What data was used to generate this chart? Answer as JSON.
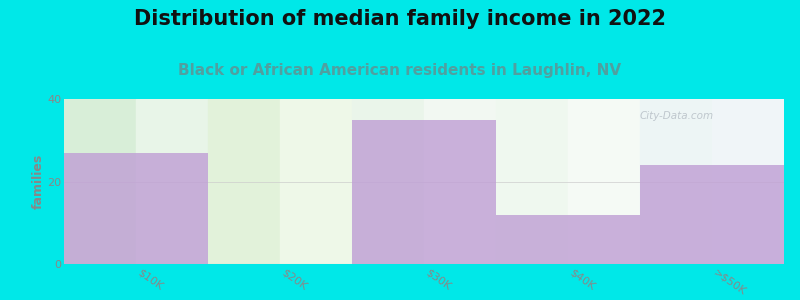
{
  "title": "Distribution of median family income in 2022",
  "subtitle": "Black or African American residents in Laughlin, NV",
  "categories": [
    "$10K",
    "$20K",
    "$30K",
    "$40K",
    ">$50K"
  ],
  "values": [
    27,
    0,
    35,
    12,
    24
  ],
  "bar_color": "#c0a0d5",
  "background_color": "#00e8e8",
  "plot_bg_colors": [
    "#dff0df",
    "#e8f5e0",
    "#eaf2ea",
    "#f0f8f0",
    "#edf4f8"
  ],
  "ylabel": "families",
  "ylim": [
    0,
    40
  ],
  "yticks": [
    0,
    20,
    40
  ],
  "title_fontsize": 15,
  "subtitle_fontsize": 11,
  "subtitle_color": "#50a0a0",
  "title_color": "#111111",
  "tick_color": "#888888",
  "grid_color": "#cccccc",
  "watermark": "City-Data.com",
  "bar_alpha": 0.82
}
